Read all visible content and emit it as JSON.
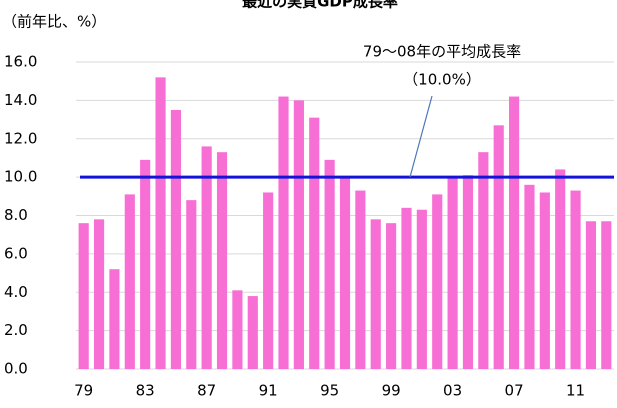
{
  "chart_data": {
    "type": "bar",
    "title": "最近の実質GDP成長率",
    "y_unit": "（前年比、%）",
    "categories": [
      "79",
      null,
      null,
      null,
      "83",
      null,
      null,
      null,
      "87",
      null,
      null,
      null,
      "91",
      null,
      null,
      null,
      "95",
      null,
      null,
      null,
      "99",
      null,
      null,
      null,
      "03",
      null,
      null,
      null,
      "07",
      null,
      null,
      null,
      "11",
      null,
      null
    ],
    "values": [
      7.6,
      7.8,
      5.2,
      9.1,
      10.9,
      15.2,
      13.5,
      8.8,
      11.6,
      11.3,
      4.1,
      3.8,
      9.2,
      14.2,
      14.0,
      13.1,
      10.9,
      10.0,
      9.3,
      7.8,
      7.6,
      8.4,
      8.3,
      9.1,
      10.0,
      10.1,
      11.3,
      12.7,
      14.2,
      9.6,
      9.2,
      10.4,
      9.3,
      7.7,
      7.7
    ],
    "color": "#f76ed4",
    "average": {
      "name": "79～08年の平均成長率",
      "value": 10.0,
      "label": "（10.0%）",
      "color": "#1414d8"
    },
    "ylim": [
      0,
      16
    ],
    "yticks": [
      {
        "value": 0,
        "label": "0.0"
      },
      {
        "value": 2,
        "label": "2.0"
      },
      {
        "value": 4,
        "label": "4.0"
      },
      {
        "value": 6,
        "label": "6.0"
      },
      {
        "value": 8,
        "label": "8.0"
      },
      {
        "value": 10,
        "label": "10.0"
      },
      {
        "value": 12,
        "label": "12.0"
      },
      {
        "value": 14,
        "label": "14.0"
      },
      {
        "value": 16,
        "label": "16.0"
      }
    ],
    "grid": true
  }
}
